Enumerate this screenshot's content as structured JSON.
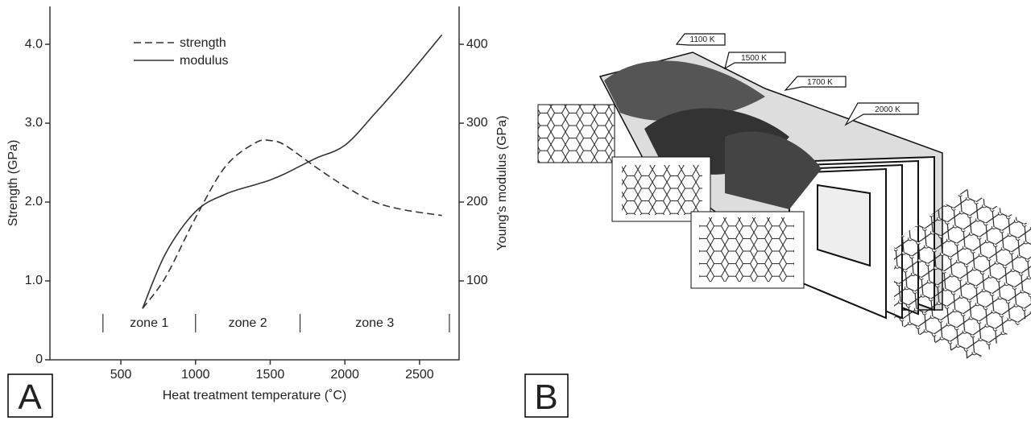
{
  "chart_data": {
    "type": "line",
    "x_label": "Heat treatment temperature (˚C)",
    "y_label": "Strength (GPa)",
    "y2_label": "Young's modulus (GPa)",
    "x": [
      645,
      800,
      1000,
      1200,
      1400,
      1500,
      1600,
      1800,
      2000,
      2200,
      2400,
      2650
    ],
    "series": [
      {
        "name": "strength",
        "color": "#333333",
        "style": "dashed",
        "values": [
          0.65,
          1.05,
          1.8,
          2.45,
          2.75,
          2.78,
          2.72,
          2.45,
          2.2,
          2.0,
          1.9,
          1.83
        ]
      },
      {
        "name": "modulus",
        "color": "#333333",
        "style": "solid",
        "axis": "y2",
        "values": [
          65,
          135,
          188,
          210,
          222,
          228,
          236,
          255,
          272,
          312,
          355,
          412
        ]
      }
    ],
    "xlim": [
      25,
      2765
    ],
    "xticks": [
      500,
      1000,
      1500,
      2000,
      2500
    ],
    "ylim": [
      0,
      4.48
    ],
    "yticks": [
      0,
      {
        "value": 1,
        "label": "1.0"
      },
      {
        "value": 2,
        "label": "2.0"
      },
      {
        "value": 3,
        "label": "3.0"
      },
      {
        "value": 4,
        "label": "4.0"
      }
    ],
    "y2lim": [
      0,
      448
    ],
    "y2ticks": [
      100,
      200,
      300,
      400
    ],
    "zone_labels": [
      "zone 1",
      "zone 2",
      "zone 3"
    ],
    "zone_boundaries": [
      380,
      1000,
      1700,
      2700
    ],
    "legend": "upper-left"
  },
  "panel_labels": [
    "A",
    "B"
  ],
  "diagram": {
    "labels": [
      "1100 K",
      "1500 K",
      "1700 K",
      "2000 K"
    ]
  }
}
